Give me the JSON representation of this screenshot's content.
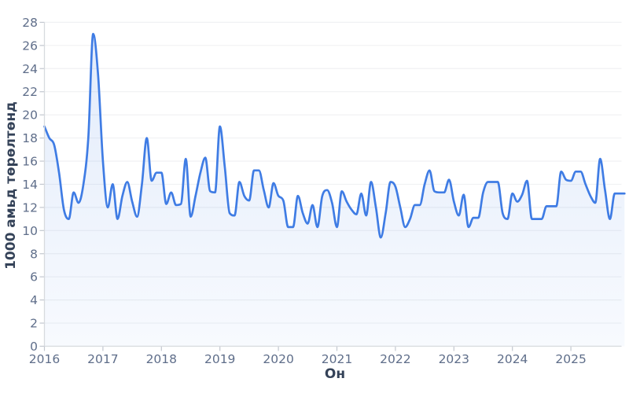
{
  "chart_data": {
    "type": "area",
    "title": "",
    "xlabel": "Он",
    "ylabel": "1000 амьд төрөлтөнд",
    "x_tick_labels": [
      "2016",
      "2017",
      "2018",
      "2019",
      "2020",
      "2021",
      "2022",
      "2023",
      "2024",
      "2025"
    ],
    "y_tick_values": [
      0,
      2,
      4,
      6,
      8,
      10,
      12,
      14,
      16,
      18,
      20,
      22,
      24,
      26,
      28
    ],
    "ylim": [
      0,
      28
    ],
    "grid": true,
    "legend": false,
    "series": [
      {
        "name": "1000 амьд төрөлтөнд",
        "frequency": "monthly",
        "x_start": "2016-01",
        "x_end": "2025-12",
        "values": [
          19,
          18,
          17.4,
          15,
          11.8,
          11,
          13.3,
          12.4,
          14,
          18,
          27,
          23.5,
          16,
          12,
          14,
          11,
          13,
          14.2,
          12.5,
          11.2,
          14,
          18,
          14.3,
          15,
          15,
          12.3,
          13.3,
          12.2,
          12.3,
          16.2,
          11.2,
          13,
          15,
          16.3,
          13.4,
          13.3,
          19,
          15.5,
          11.5,
          11.3,
          14.2,
          13,
          12.6,
          15.2,
          15.2,
          13.5,
          12,
          14.1,
          13,
          12.6,
          10.3,
          10.3,
          13,
          11.5,
          10.6,
          12.2,
          10.3,
          13,
          13.5,
          12.4,
          10.3,
          13.4,
          12.5,
          11.8,
          11.4,
          13.2,
          11.3,
          14.2,
          12,
          9.4,
          11.5,
          14.2,
          13.8,
          12,
          10.3,
          11,
          12.2,
          12.2,
          14,
          15.2,
          13.4,
          13.3,
          13.3,
          14.4,
          12.5,
          11.3,
          13.1,
          10.3,
          11.1,
          11.1,
          13.3,
          14.2,
          14.2,
          14.2,
          11.5,
          11,
          13.2,
          12.5,
          13.1,
          14.3,
          11,
          11,
          11,
          12.1,
          12.1,
          12.1,
          15.1,
          14.4,
          14.3,
          15.1,
          15.1,
          14,
          13,
          12.4,
          16.2,
          13.5,
          11,
          13.2,
          13.2,
          13.2
        ]
      }
    ]
  },
  "style": {
    "line_color": "#3f7ce4",
    "fill_top": "rgba(63,124,228,0.15)",
    "fill_bottom": "rgba(63,124,228,0.04)",
    "grid_color": "#f0f1f3",
    "axis_color": "#d7dade",
    "tick_mark_color": "#c2c7cf",
    "tick_label_color": "#5f6e8a",
    "title_color": "#344258",
    "background": "#ffffff"
  }
}
